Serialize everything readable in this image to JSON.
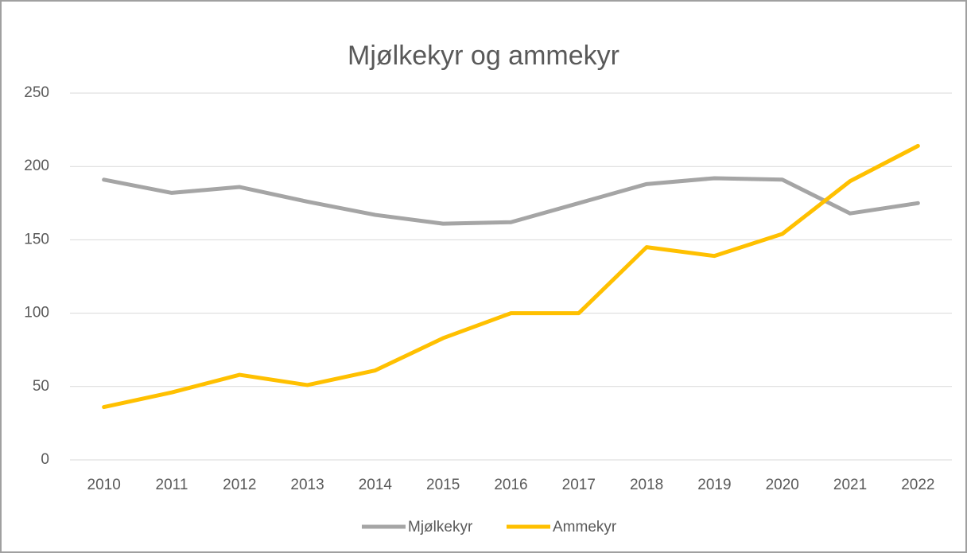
{
  "chart_data": {
    "type": "line",
    "title": "Mjølkekyr og ammekyr",
    "categories": [
      "2010",
      "2011",
      "2012",
      "2013",
      "2014",
      "2015",
      "2016",
      "2017",
      "2018",
      "2019",
      "2020",
      "2021",
      "2022"
    ],
    "series": [
      {
        "name": "Mjølkekyr",
        "color": "#a5a5a5",
        "values": [
          191,
          182,
          186,
          176,
          167,
          161,
          162,
          175,
          188,
          192,
          191,
          168,
          175
        ]
      },
      {
        "name": "Ammekyr",
        "color": "#ffc000",
        "values": [
          36,
          46,
          58,
          51,
          61,
          83,
          100,
          100,
          145,
          139,
          154,
          190,
          214
        ]
      }
    ],
    "ylim": [
      0,
      250
    ],
    "yticks": [
      0,
      50,
      100,
      150,
      200,
      250
    ],
    "grid": true,
    "legend": "bottom"
  }
}
